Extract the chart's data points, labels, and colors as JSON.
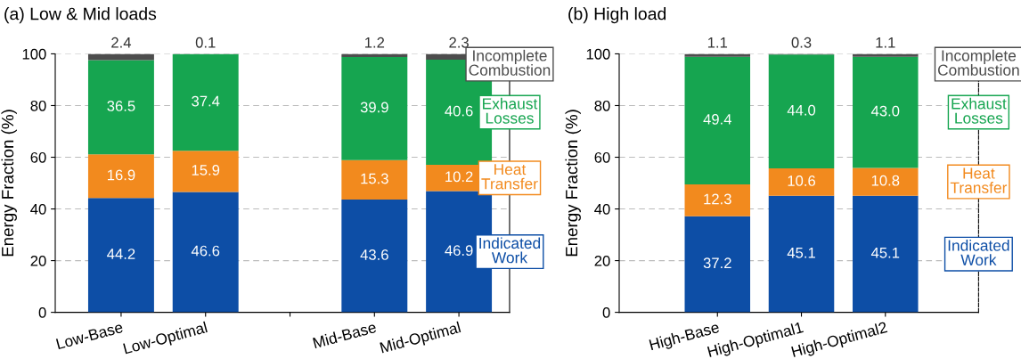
{
  "chart_data": [
    {
      "type": "bar",
      "stacked": true,
      "title": "(a) Low & Mid loads",
      "ylabel": "Energy Fraction (%)",
      "categories": [
        "Low-Base",
        "Low-Optimal",
        null,
        "Mid-Base",
        "Mid-Optimal"
      ],
      "series": [
        {
          "name": "Indicated Work",
          "color": "#0d4ea6",
          "values": [
            44.2,
            46.6,
            null,
            43.6,
            46.9
          ]
        },
        {
          "name": "Heat Transfer",
          "color": "#f28a1e",
          "values": [
            16.9,
            15.9,
            null,
            15.3,
            10.2
          ]
        },
        {
          "name": "Exhaust Losses",
          "color": "#16a550",
          "values": [
            36.5,
            37.4,
            null,
            39.9,
            40.6
          ]
        },
        {
          "name": "Incomplete Combustion",
          "color": "#4d4d4d",
          "values": [
            2.4,
            0.1,
            null,
            1.2,
            2.3
          ]
        }
      ],
      "ylim": [
        0,
        100
      ],
      "yticks": [
        0,
        20,
        40,
        60,
        80,
        100
      ],
      "grid": "y",
      "legend": "right",
      "data_labels": true
    },
    {
      "type": "bar",
      "stacked": true,
      "title": "(b) High load",
      "ylabel": "Energy Fraction (%)",
      "categories": [
        "High-Base",
        "High-Optimal1",
        "High-Optimal2"
      ],
      "series": [
        {
          "name": "Indicated Work",
          "color": "#0d4ea6",
          "values": [
            37.2,
            45.1,
            45.1
          ],
          "value_labels": [
            "37.2",
            "45.1",
            "45.1"
          ]
        },
        {
          "name": "Heat Transfer",
          "color": "#f28a1e",
          "values": [
            12.3,
            10.6,
            10.8
          ],
          "value_labels": [
            "12.3",
            "10.6",
            "10.8"
          ]
        },
        {
          "name": "Exhaust Losses",
          "color": "#16a550",
          "values": [
            49.4,
            44.0,
            43.0
          ],
          "value_labels": [
            "49.4",
            "44.0",
            "43.0"
          ]
        },
        {
          "name": "Incomplete Combustion",
          "color": "#4d4d4d",
          "values": [
            1.1,
            0.3,
            1.1
          ],
          "value_labels": [
            "1.1",
            "0.3",
            "1.1"
          ]
        }
      ],
      "ylim": [
        0,
        100
      ],
      "yticks": [
        0,
        20,
        40,
        60,
        80,
        100
      ],
      "grid": "y",
      "legend": "right"
    }
  ]
}
